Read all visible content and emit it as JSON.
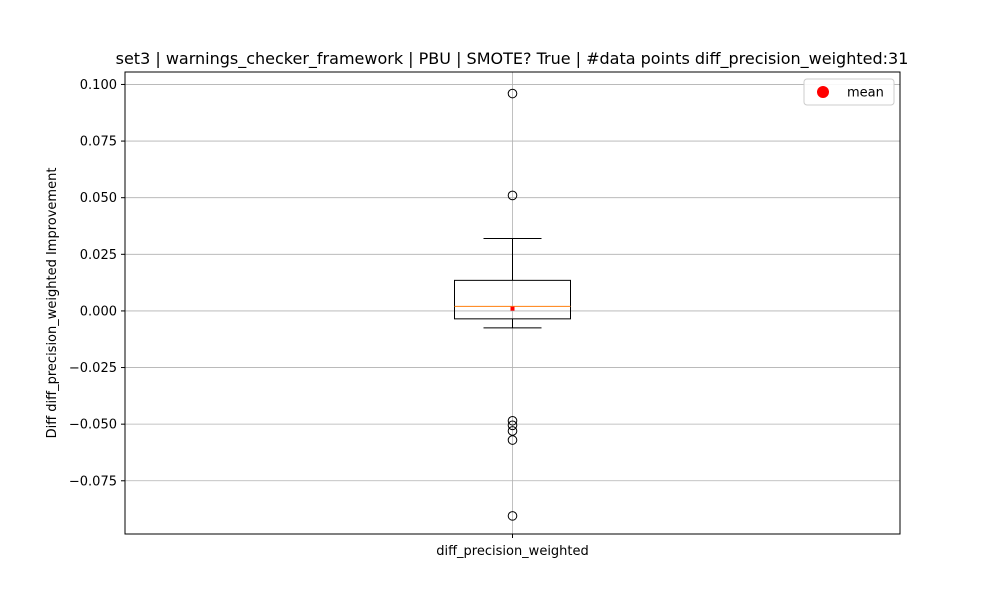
{
  "chart_data": {
    "type": "box",
    "title": "set3 | warnings_checker_framework | PBU | SMOTE? True | #data points diff_precision_weighted:31",
    "xlabel": "",
    "ylabel": "Diff diff_precision_weighted Improvement",
    "categories": [
      "diff_precision_weighted"
    ],
    "ylim": [
      -0.0985,
      0.1055
    ],
    "yticks": [
      -0.075,
      -0.05,
      -0.025,
      0.0,
      0.025,
      0.05,
      0.075,
      0.1
    ],
    "ytick_labels": [
      "−0.075",
      "−0.050",
      "−0.025",
      "0.000",
      "0.025",
      "0.050",
      "0.075",
      "0.100"
    ],
    "grid": true,
    "legend": {
      "placement": "top-right",
      "entries": [
        {
          "label": "mean",
          "marker": "circle",
          "color": "#ff0000"
        }
      ]
    },
    "series": [
      {
        "category": "diff_precision_weighted",
        "whisker_low": -0.0075,
        "q1": -0.0035,
        "median": 0.002,
        "q3": 0.0135,
        "whisker_high": 0.032,
        "mean": 0.001,
        "outliers": [
          0.096,
          0.051,
          -0.0485,
          -0.0505,
          -0.053,
          -0.057,
          -0.0905
        ]
      }
    ],
    "colors": {
      "box": "#000000",
      "median": "#ff7f0e",
      "mean": "#ff0000",
      "grid": "#b0b0b0",
      "outlier_edge": "#000000"
    }
  }
}
